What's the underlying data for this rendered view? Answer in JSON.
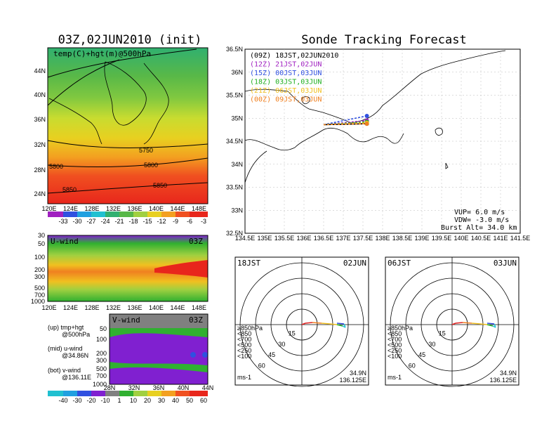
{
  "left_title": "03Z,02JUN2010 (init)",
  "right_title": "Sonde Tracking Forecast",
  "map_label": "temp(C)+hgt(m)@500hPa",
  "colorbar_top": [
    "-33",
    "-30",
    "-27",
    "-24",
    "-21",
    "-18",
    "-15",
    "-12",
    "-9",
    "-6",
    "-3"
  ],
  "colorbar_bottom": [
    "-40",
    "-30",
    "-20",
    "-10",
    "1",
    "10",
    "20",
    "30",
    "40",
    "50",
    "60"
  ],
  "left_map": {
    "lat_labels": [
      "44N",
      "40N",
      "36N",
      "32N",
      "28N",
      "24N"
    ],
    "lon_labels": [
      "120E",
      "124E",
      "128E",
      "132E",
      "136E",
      "140E",
      "144E",
      "148E"
    ],
    "contours": [
      "5750",
      "5800",
      "5850",
      "5800",
      "5850"
    ]
  },
  "uwind": {
    "label": "U-wind",
    "time": "03Z",
    "levels": [
      "30",
      "50",
      "100",
      "200",
      "300",
      "500",
      "700",
      "1000"
    ],
    "lon_labels": [
      "120E",
      "124E",
      "128E",
      "132E",
      "136E",
      "140E",
      "144E",
      "148E"
    ]
  },
  "vwind": {
    "label": "V-wind",
    "time": "03Z",
    "levels": [
      "200",
      "300",
      "500",
      "700",
      "1000"
    ],
    "extra_levels": [
      "50",
      "100"
    ],
    "lat_labels": [
      "28N",
      "32N",
      "36N",
      "40N",
      "44N"
    ]
  },
  "legend_text": [
    "(up) tmp+hgt",
    "@500hPa",
    "(mid) u-wind",
    "@34.86N",
    "(bot) v-wind",
    "@136.11E"
  ],
  "track_map": {
    "lat_labels": [
      "36.5N",
      "36N",
      "35.5N",
      "35N",
      "34.5N",
      "34N",
      "33.5N",
      "33N",
      "32.5N"
    ],
    "lon_labels": [
      "134.5E",
      "135E",
      "135.5E",
      "136E",
      "136.5E",
      "137E",
      "137.5E",
      "138E",
      "138.5E",
      "139E",
      "139.5E",
      "140E",
      "140.5E",
      "141E",
      "141.5E"
    ],
    "runs": [
      {
        "text": "(09Z)  18JST,02JUN2010",
        "color": "#000000"
      },
      {
        "text": "(12Z)  21JST,02JUN",
        "color": "#a020c0"
      },
      {
        "text": "(15Z)  00JST,03JUN",
        "color": "#3050e0"
      },
      {
        "text": "(18Z)  03JST,03JUN",
        "color": "#20b020"
      },
      {
        "text": "(21Z)  06JST,03JUN",
        "color": "#f0c020"
      },
      {
        "text": "(00Z)  09JST,03JUN",
        "color": "#f08020"
      }
    ],
    "vup": "VUP=  6.0  m/s",
    "vdw": "VDW= -3.0  m/s",
    "burst": "Burst Alt= 34.0  km"
  },
  "hodo_left": {
    "time": "18JST",
    "date": "02JUN",
    "lat": "34.9N",
    "lon": "136.125E",
    "unit": "ms-1"
  },
  "hodo_right": {
    "time": "06JST",
    "date": "03JUN",
    "lat": "34.9N",
    "lon": "136.125E",
    "unit": "ms-1"
  },
  "hodo_rings": [
    "15",
    "30",
    "45",
    "60"
  ],
  "hodo_levels": [
    {
      "text": "≥850hPa",
      "color": "#e02020"
    },
    {
      "text": "<850",
      "color": "#f08020"
    },
    {
      "text": "<700",
      "color": "#f0c020"
    },
    {
      "text": "<500",
      "color": "#20b020"
    },
    {
      "text": "<250",
      "color": "#20c0d0"
    },
    {
      "text": "<100",
      "color": "#3050e0"
    }
  ],
  "chart_data": [
    {
      "type": "heatmap",
      "title": "temp(C)+hgt(m)@500hPa",
      "contour_levels": [
        5750,
        5800,
        5850
      ],
      "color_scale": [
        -33,
        -30,
        -27,
        -24,
        -21,
        -18,
        -15,
        -12,
        -9,
        -6,
        -3
      ]
    },
    {
      "type": "heatmap",
      "title": "U-wind",
      "y_levels_hPa": [
        30,
        50,
        100,
        200,
        300,
        500,
        700,
        1000
      ],
      "x_lon": [
        120,
        124,
        128,
        132,
        136,
        140,
        144,
        148
      ]
    },
    {
      "type": "heatmap",
      "title": "V-wind",
      "y_levels_hPa": [
        50,
        100,
        200,
        300,
        500,
        700,
        1000
      ],
      "x_lat": [
        28,
        32,
        36,
        40,
        44
      ],
      "color_scale": [
        -40,
        -30,
        -20,
        -10,
        1,
        10,
        20,
        30,
        40,
        50,
        60
      ]
    },
    {
      "type": "line",
      "title": "Sonde Tracking Forecast",
      "series": [
        {
          "name": "(09Z)",
          "x": [
            136.5,
            137.6
          ],
          "y": [
            34.86,
            34.88
          ]
        },
        {
          "name": "(12Z)",
          "x": [
            136.5,
            137.6
          ],
          "y": [
            34.86,
            34.95
          ]
        },
        {
          "name": "(15Z)",
          "x": [
            136.5,
            137.6
          ],
          "y": [
            34.86,
            35.05
          ]
        },
        {
          "name": "(18Z)",
          "x": [
            136.5,
            137.6
          ],
          "y": [
            34.86,
            34.92
          ]
        },
        {
          "name": "(21Z)",
          "x": [
            136.5,
            137.6
          ],
          "y": [
            34.86,
            34.9
          ]
        },
        {
          "name": "(00Z)",
          "x": [
            136.5,
            137.6
          ],
          "y": [
            34.86,
            34.88
          ]
        }
      ],
      "xlim": [
        134.5,
        141.5
      ],
      "ylim": [
        32.5,
        36.5
      ]
    }
  ]
}
